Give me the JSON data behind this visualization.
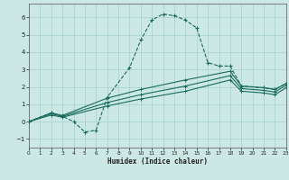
{
  "background_color": "#cce8e4",
  "grid_color": "#aad4d0",
  "line_color": "#1a6b5e",
  "xlabel": "Humidex (Indice chaleur)",
  "xlim": [
    0,
    23
  ],
  "ylim": [
    -1.5,
    6.8
  ],
  "xticks": [
    0,
    1,
    2,
    3,
    4,
    5,
    6,
    7,
    8,
    9,
    10,
    11,
    12,
    13,
    14,
    15,
    16,
    17,
    18,
    19,
    20,
    21,
    22,
    23
  ],
  "yticks": [
    -1,
    0,
    1,
    2,
    3,
    4,
    5,
    6
  ],
  "curve1_x": [
    0,
    2,
    3,
    4,
    5,
    6,
    7,
    9,
    10,
    11,
    12,
    13,
    14,
    15,
    16,
    17,
    18,
    19,
    21,
    22,
    23
  ],
  "curve1_y": [
    0.0,
    0.5,
    0.3,
    0.0,
    -0.6,
    -0.5,
    1.4,
    3.1,
    4.7,
    5.85,
    6.2,
    6.1,
    5.85,
    5.4,
    3.4,
    3.2,
    3.2,
    2.05,
    1.95,
    1.85,
    2.2
  ],
  "curve2_x": [
    0,
    2,
    3,
    7,
    10,
    14,
    18,
    19,
    21,
    22,
    23
  ],
  "curve2_y": [
    0.0,
    0.5,
    0.35,
    1.35,
    1.85,
    2.4,
    2.9,
    2.05,
    1.95,
    1.85,
    2.2
  ],
  "curve3_x": [
    0,
    2,
    3,
    7,
    10,
    14,
    18,
    19,
    21,
    22,
    23
  ],
  "curve3_y": [
    0.0,
    0.45,
    0.3,
    1.1,
    1.55,
    2.05,
    2.65,
    1.9,
    1.8,
    1.7,
    2.1
  ],
  "curve4_x": [
    0,
    2,
    3,
    7,
    10,
    14,
    18,
    19,
    21,
    22,
    23
  ],
  "curve4_y": [
    0.0,
    0.38,
    0.25,
    0.9,
    1.3,
    1.75,
    2.4,
    1.75,
    1.65,
    1.55,
    1.95
  ]
}
